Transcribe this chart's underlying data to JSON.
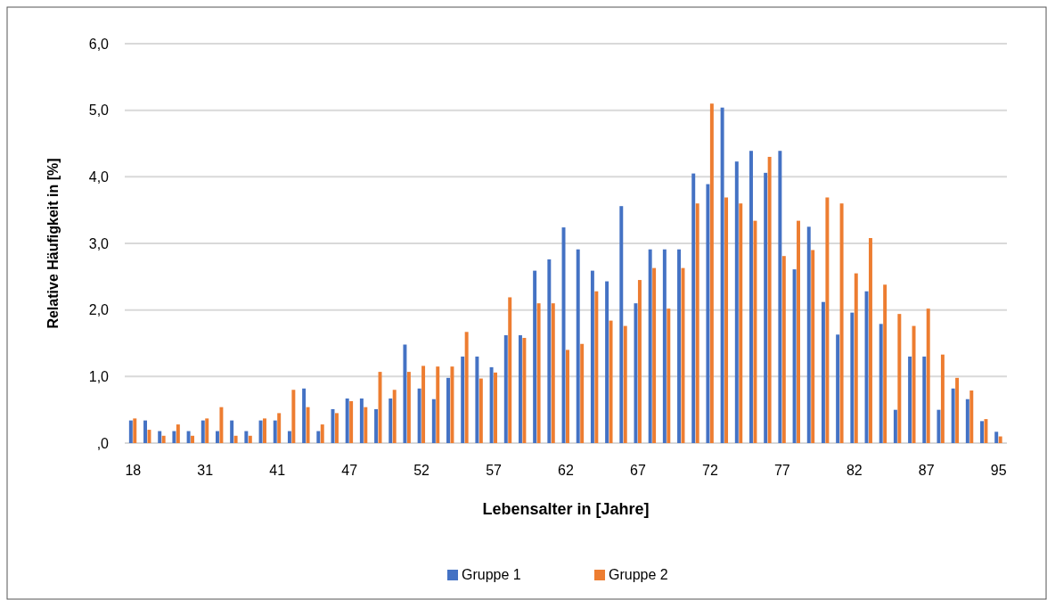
{
  "chart_data": {
    "type": "bar",
    "xlabel": "Lebensalter in [Jahre]",
    "ylabel": "Relative Häufigkeit in [%]",
    "categories": [
      "18",
      null,
      null,
      null,
      null,
      "31",
      null,
      null,
      null,
      null,
      "41",
      null,
      null,
      null,
      null,
      "47",
      null,
      null,
      null,
      null,
      "52",
      null,
      null,
      null,
      null,
      "57",
      null,
      null,
      null,
      null,
      "62",
      null,
      null,
      null,
      null,
      "67",
      null,
      null,
      null,
      null,
      "72",
      null,
      null,
      null,
      null,
      "77",
      null,
      null,
      null,
      null,
      "82",
      null,
      null,
      null,
      null,
      "87",
      null,
      null,
      null,
      null,
      "95"
    ],
    "series": [
      {
        "name": "Gruppe 1",
        "color": "#4472c4",
        "values": [
          0.34,
          0.34,
          0.18,
          0.18,
          0.18,
          0.34,
          0.18,
          0.34,
          0.18,
          0.34,
          0.34,
          0.18,
          0.82,
          0.18,
          0.51,
          0.67,
          0.67,
          0.51,
          0.67,
          1.48,
          0.82,
          0.66,
          0.98,
          1.3,
          1.3,
          1.14,
          1.62,
          1.62,
          2.59,
          2.76,
          3.24,
          2.91,
          2.59,
          2.43,
          3.56,
          2.1,
          2.91,
          2.91,
          2.91,
          4.05,
          3.89,
          5.04,
          4.23,
          4.39,
          4.06,
          4.39,
          2.61,
          3.25,
          2.12,
          1.63,
          1.96,
          2.28,
          1.79,
          0.5,
          1.3,
          1.3,
          0.5,
          0.82,
          0.66,
          0.33,
          0.17
        ]
      },
      {
        "name": "Gruppe 2",
        "color": "#ed7d31",
        "values": [
          0.37,
          0.2,
          0.11,
          0.28,
          0.11,
          0.37,
          0.54,
          0.11,
          0.11,
          0.37,
          0.45,
          0.8,
          0.54,
          0.28,
          0.45,
          0.63,
          0.54,
          1.07,
          0.8,
          1.07,
          1.16,
          1.15,
          1.15,
          1.67,
          0.97,
          1.06,
          2.19,
          1.58,
          2.1,
          2.1,
          1.4,
          1.49,
          2.28,
          1.84,
          1.76,
          2.45,
          2.63,
          2.02,
          2.63,
          3.6,
          5.1,
          3.69,
          3.6,
          3.34,
          4.3,
          2.81,
          3.34,
          2.9,
          3.69,
          3.6,
          2.55,
          3.08,
          2.38,
          1.94,
          1.76,
          2.02,
          1.33,
          0.98,
          0.79,
          0.36,
          0.1
        ]
      }
    ],
    "ylim": [
      0,
      6
    ],
    "yticks": [
      {
        "value": 0,
        "label": ",0"
      },
      {
        "value": 1,
        "label": "1,0"
      },
      {
        "value": 2,
        "label": "2,0"
      },
      {
        "value": 3,
        "label": "3,0"
      },
      {
        "value": 4,
        "label": "4,0"
      },
      {
        "value": 5,
        "label": "5,0"
      },
      {
        "value": 6,
        "label": "6,0"
      }
    ],
    "grid": "y",
    "legend": "bottom"
  }
}
